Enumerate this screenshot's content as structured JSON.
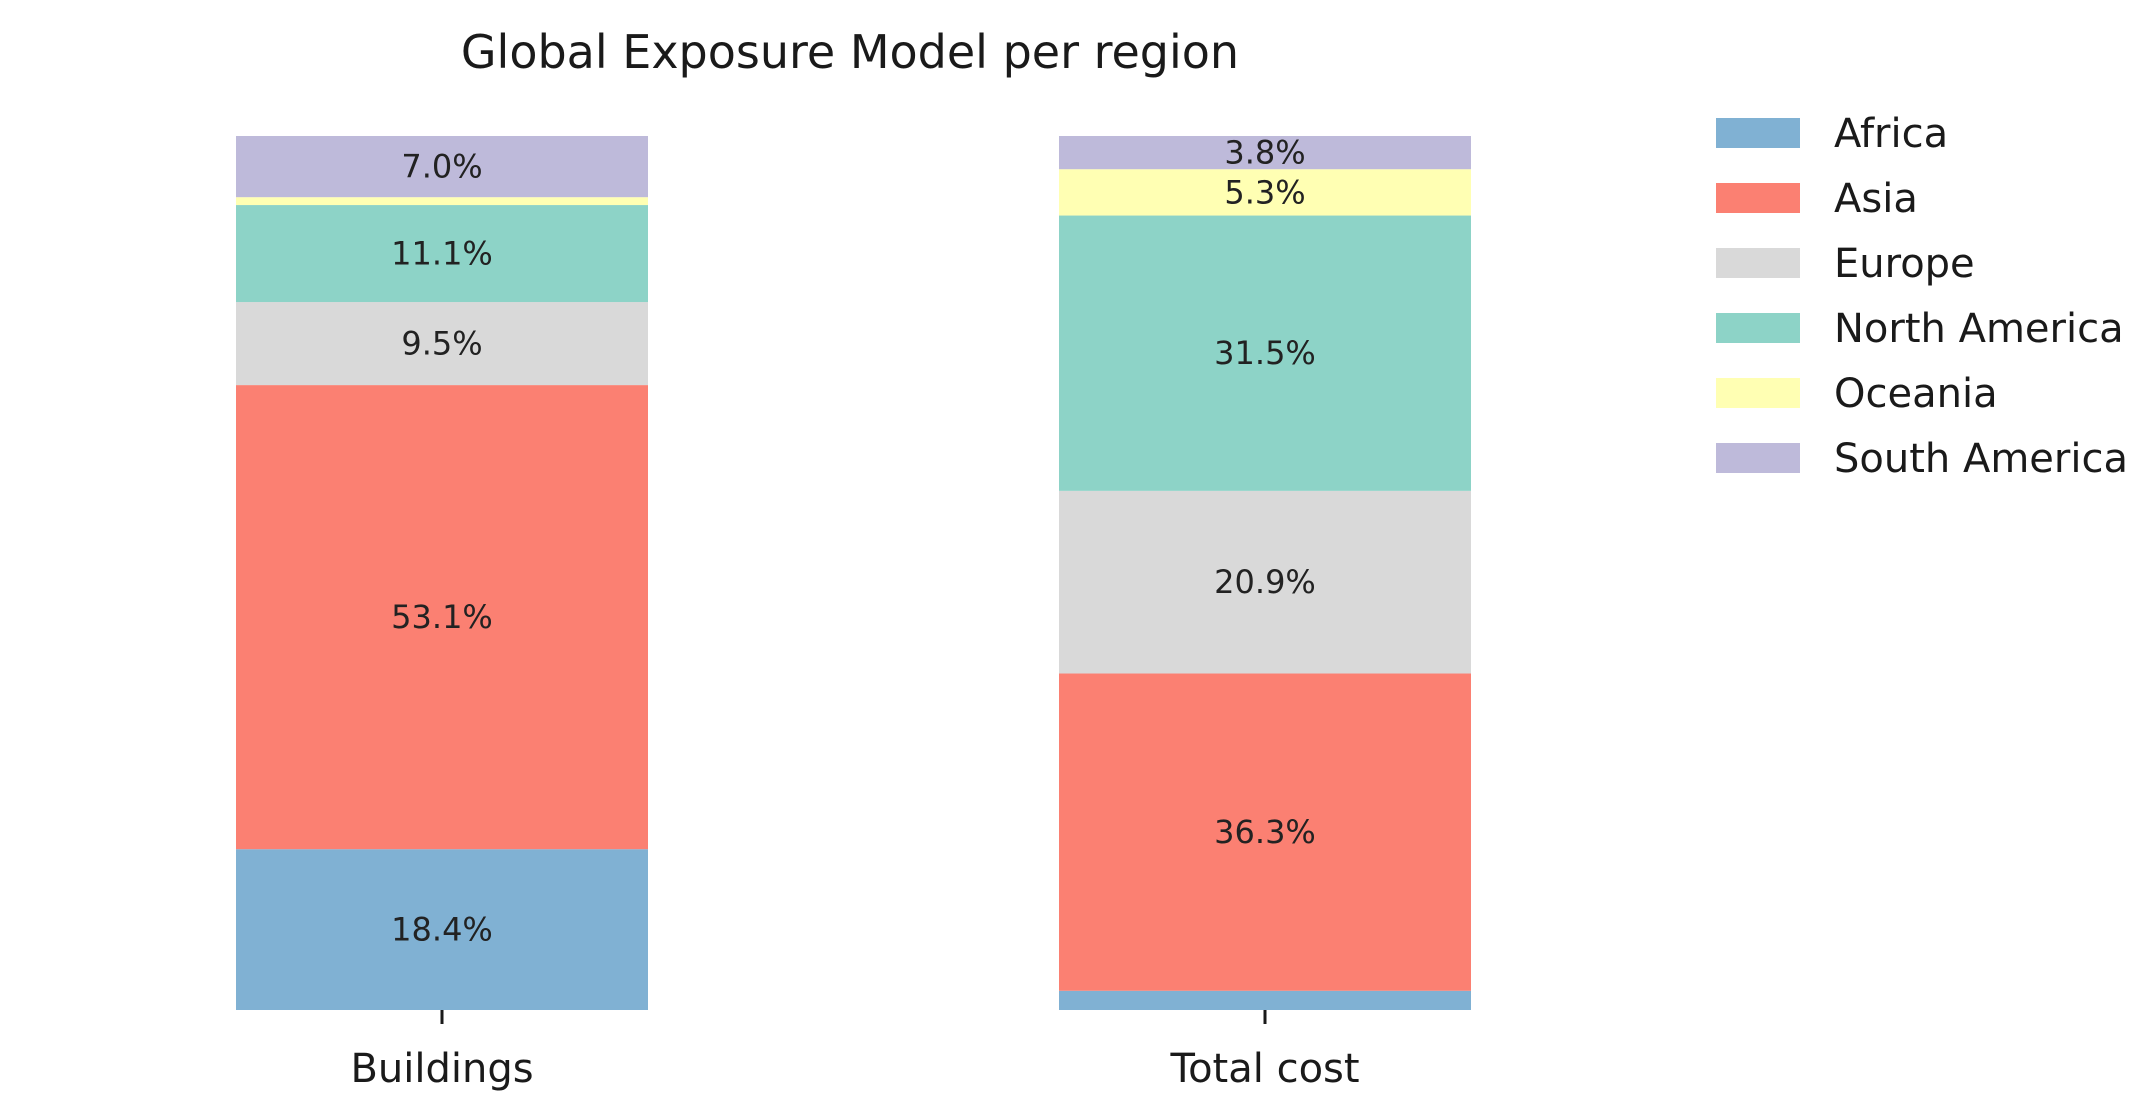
{
  "chart_data": {
    "type": "bar",
    "stacked": true,
    "normalized": true,
    "title": "Global Exposure Model per region",
    "xlabel": "",
    "ylabel": "",
    "ylim": [
      0,
      100
    ],
    "categories": [
      "Buildings",
      "Total cost"
    ],
    "series": [
      {
        "name": "Africa",
        "color": "#80b1d3",
        "values": [
          18.4,
          2.2
        ],
        "labels": [
          "18.4%",
          ""
        ]
      },
      {
        "name": "Asia",
        "color": "#fb8072",
        "values": [
          53.1,
          36.3
        ],
        "labels": [
          "53.1%",
          "36.3%"
        ]
      },
      {
        "name": "Europe",
        "color": "#d9d9d9",
        "values": [
          9.5,
          20.9
        ],
        "labels": [
          "9.5%",
          "20.9%"
        ]
      },
      {
        "name": "North America",
        "color": "#8dd3c7",
        "values": [
          11.1,
          31.5
        ],
        "labels": [
          "11.1%",
          "31.5%"
        ]
      },
      {
        "name": "Oceania",
        "color": "#ffffb3",
        "values": [
          0.9,
          5.3
        ],
        "labels": [
          "",
          "5.3%"
        ]
      },
      {
        "name": "South America",
        "color": "#bebada",
        "values": [
          7.0,
          3.8
        ],
        "labels": [
          "7.0%",
          "3.8%"
        ]
      }
    ],
    "grid": false,
    "legend_position": "right"
  }
}
